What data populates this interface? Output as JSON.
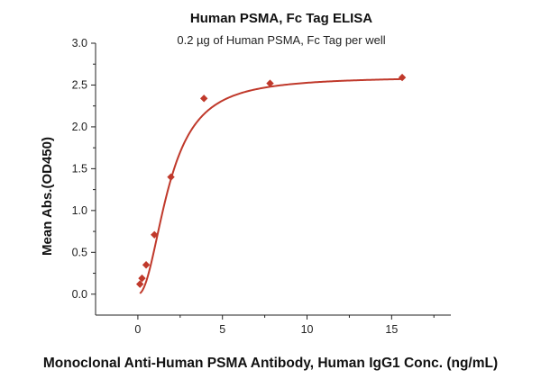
{
  "chart_data": {
    "type": "scatter",
    "title": "Human PSMA, Fc Tag ELISA",
    "subtitle": "0.2 µg of Human PSMA, Fc Tag per well",
    "xlabel": "Monoclonal Anti-Human PSMA Antibody, Human IgG1 Conc. (ng/mL)",
    "ylabel": "Mean Abs.(OD450)",
    "xlim": [
      -2.5,
      18.5
    ],
    "ylim": [
      -0.25,
      3.0
    ],
    "xticks": [
      0,
      5,
      10,
      15
    ],
    "yticks": [
      0.0,
      0.5,
      1.0,
      1.5,
      2.0,
      2.5,
      3.0
    ],
    "xtick_labels": [
      "0",
      "5",
      "10",
      "15"
    ],
    "ytick_labels": [
      "0.0",
      "0.5",
      "1.0",
      "1.5",
      "2.0",
      "2.5",
      "3.0"
    ],
    "grid": false,
    "marker_color": "#c0392b",
    "line_color": "#c0392b",
    "series": [
      {
        "x": [
          0.122,
          0.244,
          0.488,
          0.977,
          1.953,
          3.906,
          7.813,
          15.625
        ],
        "y": [
          0.12,
          0.19,
          0.35,
          0.71,
          1.4,
          2.34,
          2.52,
          2.59
        ]
      }
    ],
    "fit": {
      "model": "4PL",
      "bottom": 0.0,
      "top": 2.6,
      "ec50": 1.85,
      "hill": 2.1
    }
  }
}
